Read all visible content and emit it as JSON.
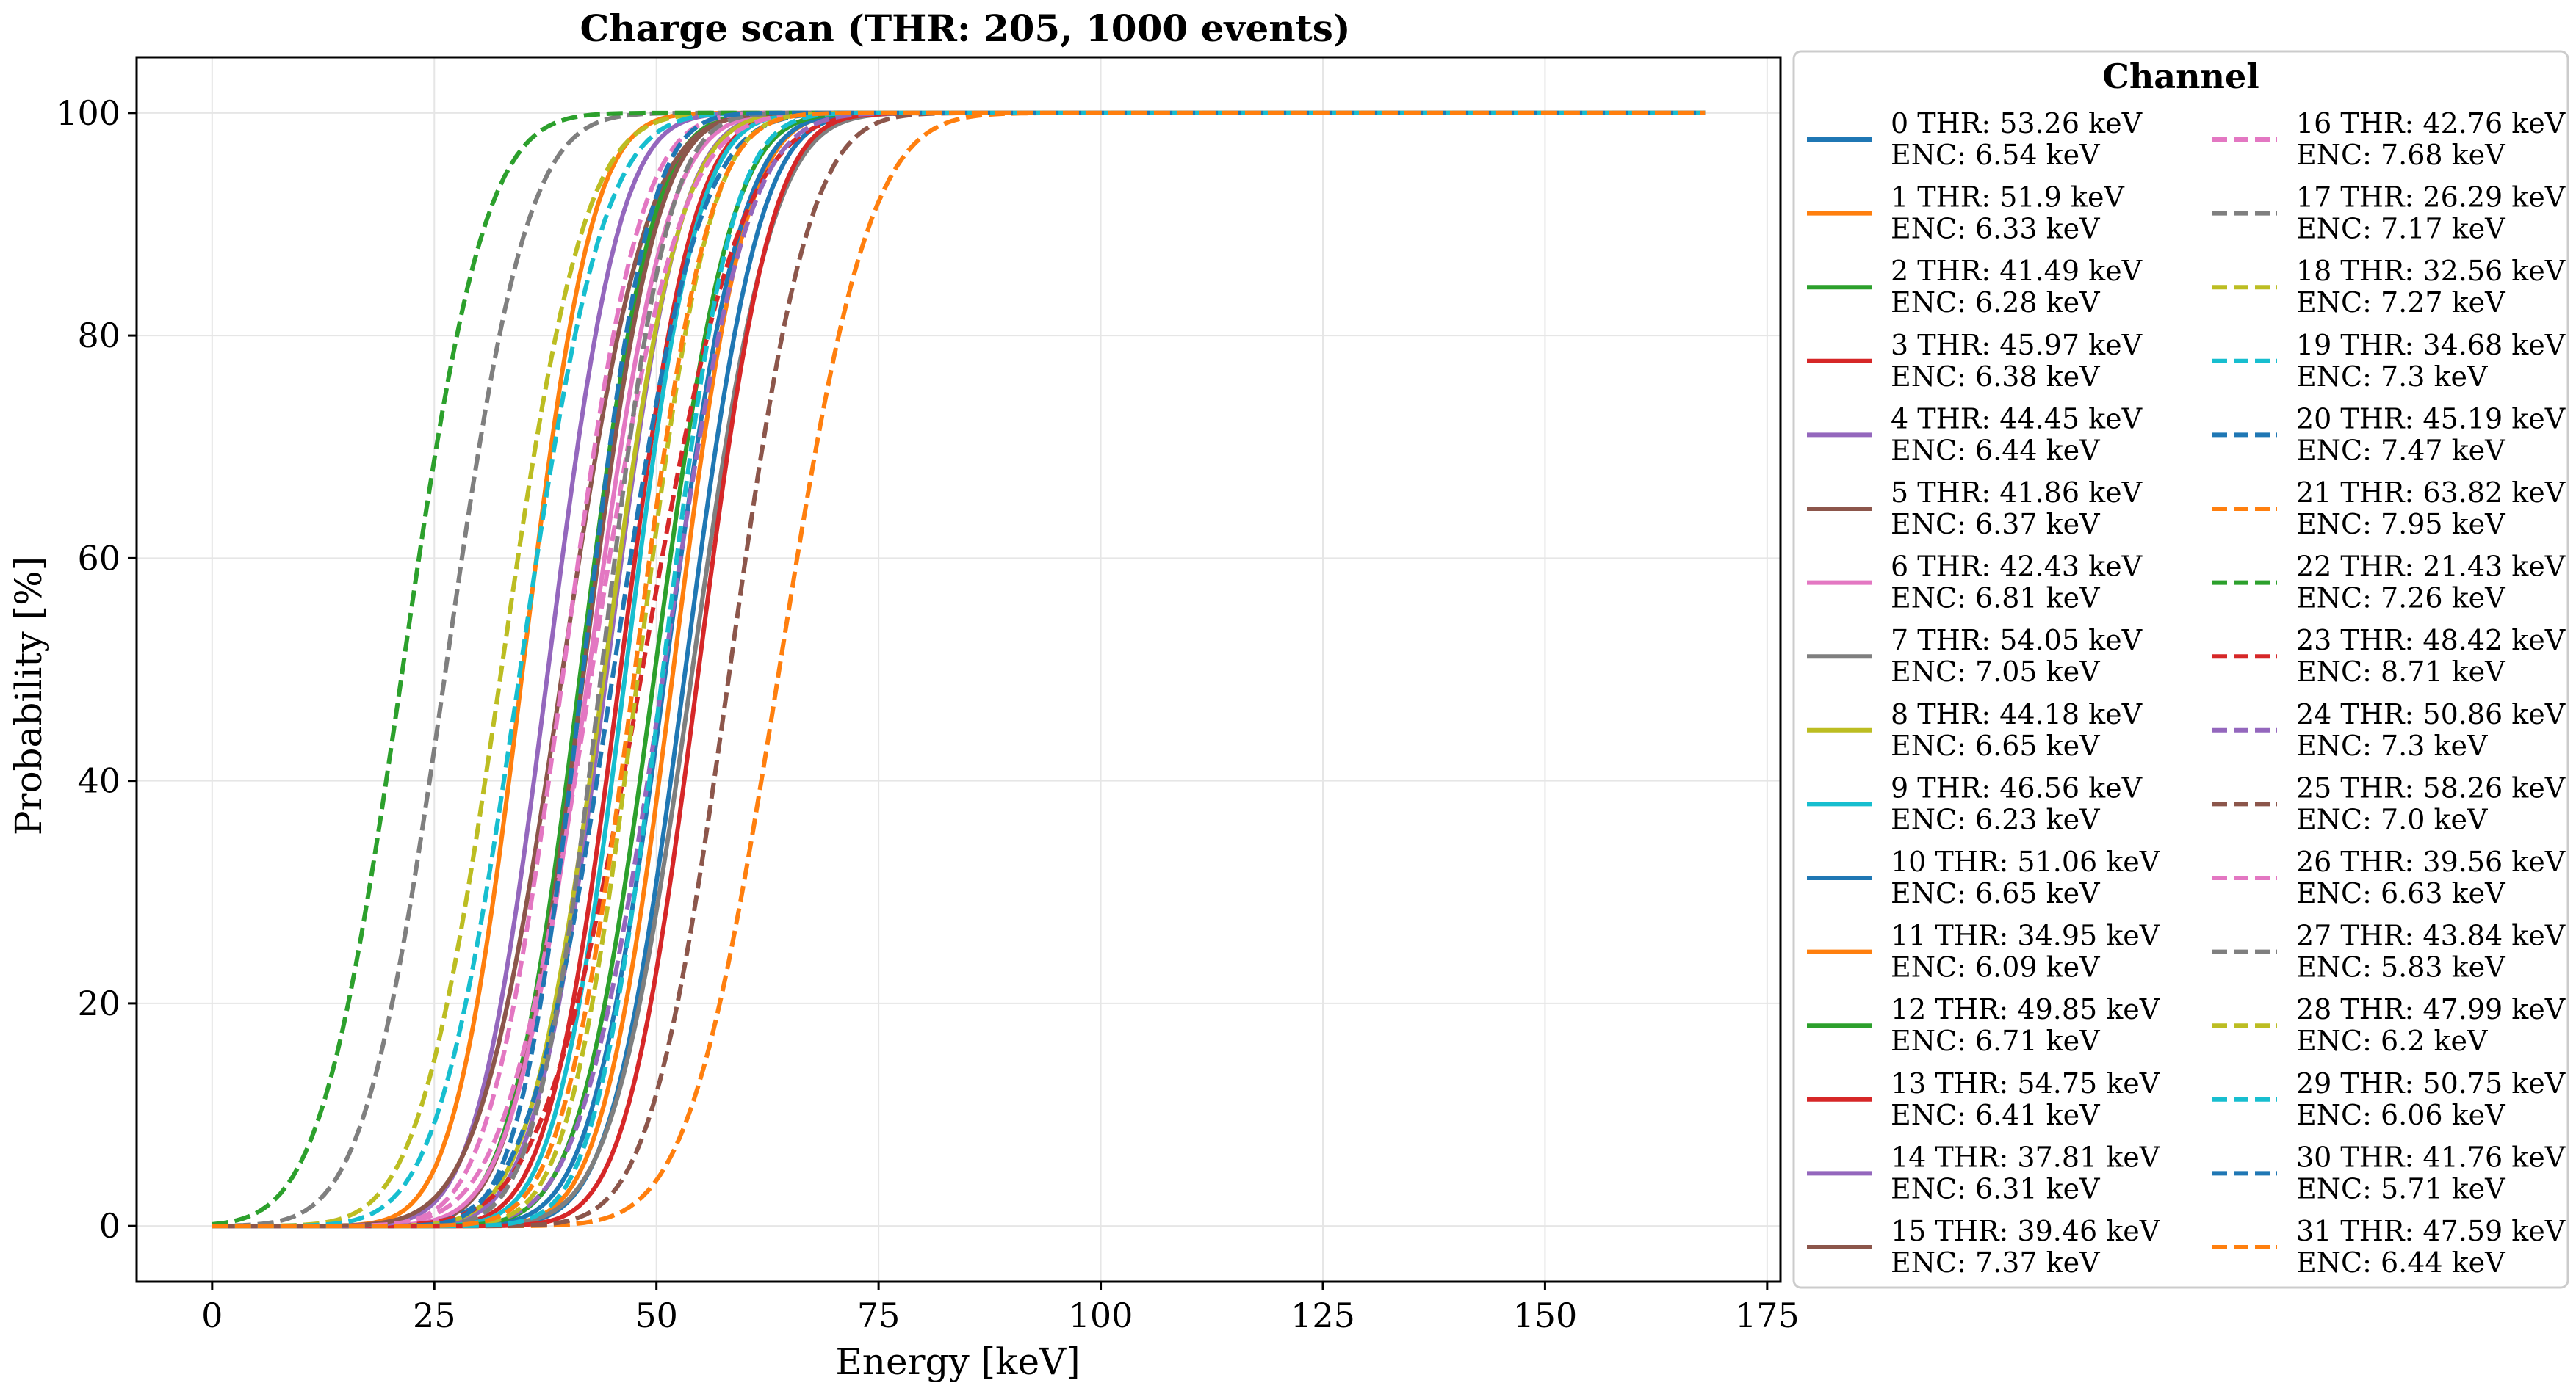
{
  "chart_data": {
    "type": "line",
    "title": "Charge scan (THR: 205, 1000 events)",
    "xlabel": "Energy [keV]",
    "ylabel": "Probability [%]",
    "xlim": [
      -8.5,
      176.5
    ],
    "ylim": [
      -5,
      105
    ],
    "xticks": [
      0,
      25,
      50,
      75,
      100,
      125,
      150,
      175
    ],
    "yticks": [
      0,
      20,
      40,
      60,
      80,
      100
    ],
    "x_range": [
      0,
      168
    ],
    "grid": true,
    "legend": {
      "title": "Channel",
      "placement": "outside-right",
      "columns": 2
    },
    "series": [
      {
        "name": "0",
        "thr": "53.26",
        "enc": "6.54",
        "color": "#1f77b4",
        "dash": false
      },
      {
        "name": "1",
        "thr": "51.9",
        "enc": "6.33",
        "color": "#ff7f0e",
        "dash": false
      },
      {
        "name": "2",
        "thr": "41.49",
        "enc": "6.28",
        "color": "#2ca02c",
        "dash": false
      },
      {
        "name": "3",
        "thr": "45.97",
        "enc": "6.38",
        "color": "#d62728",
        "dash": false
      },
      {
        "name": "4",
        "thr": "44.45",
        "enc": "6.44",
        "color": "#9467bd",
        "dash": false
      },
      {
        "name": "5",
        "thr": "41.86",
        "enc": "6.37",
        "color": "#8c564b",
        "dash": false
      },
      {
        "name": "6",
        "thr": "42.43",
        "enc": "6.81",
        "color": "#e377c2",
        "dash": false
      },
      {
        "name": "7",
        "thr": "54.05",
        "enc": "7.05",
        "color": "#7f7f7f",
        "dash": false
      },
      {
        "name": "8",
        "thr": "44.18",
        "enc": "6.65",
        "color": "#bcbd22",
        "dash": false
      },
      {
        "name": "9",
        "thr": "46.56",
        "enc": "6.23",
        "color": "#17becf",
        "dash": false
      },
      {
        "name": "10",
        "thr": "51.06",
        "enc": "6.65",
        "color": "#1f77b4",
        "dash": false
      },
      {
        "name": "11",
        "thr": "34.95",
        "enc": "6.09",
        "color": "#ff7f0e",
        "dash": false
      },
      {
        "name": "12",
        "thr": "49.85",
        "enc": "6.71",
        "color": "#2ca02c",
        "dash": false
      },
      {
        "name": "13",
        "thr": "54.75",
        "enc": "6.41",
        "color": "#d62728",
        "dash": false
      },
      {
        "name": "14",
        "thr": "37.81",
        "enc": "6.31",
        "color": "#9467bd",
        "dash": false
      },
      {
        "name": "15",
        "thr": "39.46",
        "enc": "7.37",
        "color": "#8c564b",
        "dash": false
      },
      {
        "name": "16",
        "thr": "42.76",
        "enc": "7.68",
        "color": "#e377c2",
        "dash": true
      },
      {
        "name": "17",
        "thr": "26.29",
        "enc": "7.17",
        "color": "#7f7f7f",
        "dash": true
      },
      {
        "name": "18",
        "thr": "32.56",
        "enc": "7.27",
        "color": "#bcbd22",
        "dash": true
      },
      {
        "name": "19",
        "thr": "34.68",
        "enc": "7.3",
        "color": "#17becf",
        "dash": true
      },
      {
        "name": "20",
        "thr": "45.19",
        "enc": "7.47",
        "color": "#1f77b4",
        "dash": true
      },
      {
        "name": "21",
        "thr": "63.82",
        "enc": "7.95",
        "color": "#ff7f0e",
        "dash": true
      },
      {
        "name": "22",
        "thr": "21.43",
        "enc": "7.26",
        "color": "#2ca02c",
        "dash": true
      },
      {
        "name": "23",
        "thr": "48.42",
        "enc": "8.71",
        "color": "#d62728",
        "dash": true
      },
      {
        "name": "24",
        "thr": "50.86",
        "enc": "7.3",
        "color": "#9467bd",
        "dash": true
      },
      {
        "name": "25",
        "thr": "58.26",
        "enc": "7.0",
        "color": "#8c564b",
        "dash": true
      },
      {
        "name": "26",
        "thr": "39.56",
        "enc": "6.63",
        "color": "#e377c2",
        "dash": true
      },
      {
        "name": "27",
        "thr": "43.84",
        "enc": "5.83",
        "color": "#7f7f7f",
        "dash": true
      },
      {
        "name": "28",
        "thr": "47.99",
        "enc": "6.2",
        "color": "#bcbd22",
        "dash": true
      },
      {
        "name": "29",
        "thr": "50.75",
        "enc": "6.06",
        "color": "#17becf",
        "dash": true
      },
      {
        "name": "30",
        "thr": "41.76",
        "enc": "5.71",
        "color": "#1f77b4",
        "dash": true
      },
      {
        "name": "31",
        "thr": "47.59",
        "enc": "6.44",
        "color": "#ff7f0e",
        "dash": true
      }
    ]
  }
}
